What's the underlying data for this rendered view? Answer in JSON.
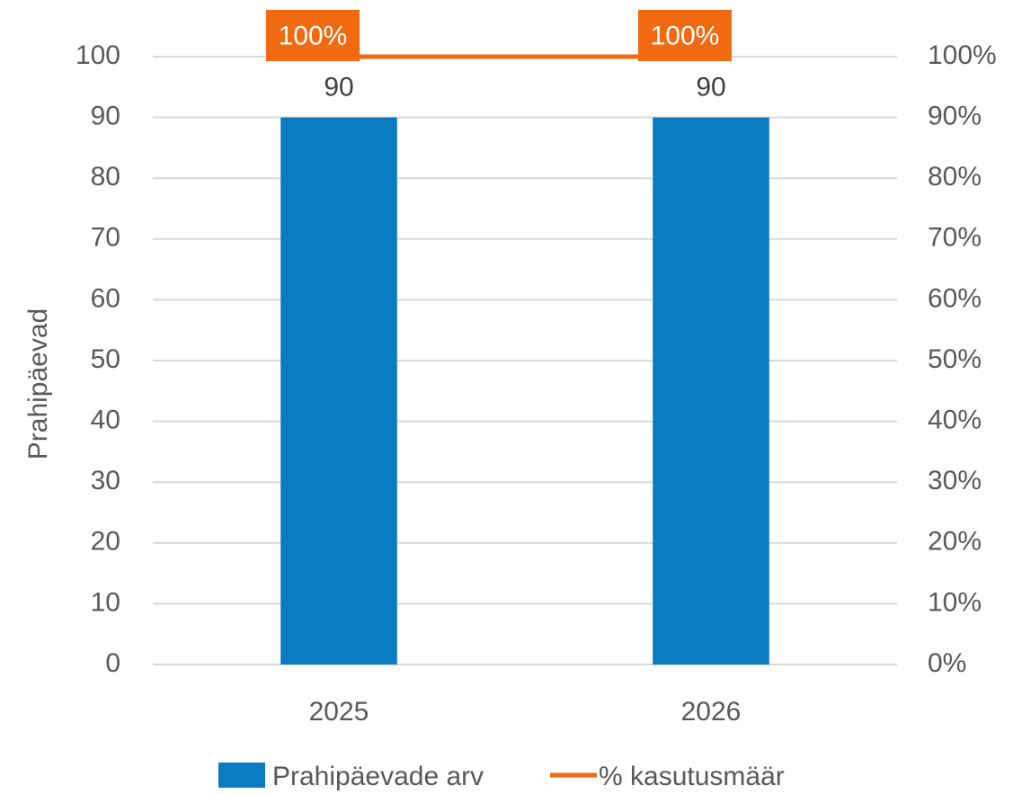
{
  "chart_data": {
    "type": "bar",
    "categories": [
      "2025",
      "2026"
    ],
    "series": [
      {
        "name": "Prahipäevade arv",
        "type": "bar",
        "axis": "left",
        "values": [
          90,
          90
        ],
        "value_labels": [
          "90",
          "90"
        ],
        "color": "#0A7BC0"
      },
      {
        "name": "% kasutusmäär",
        "type": "line",
        "axis": "right",
        "values": [
          100,
          100
        ],
        "value_labels": [
          "100%",
          "100%"
        ],
        "color": "#F26A10"
      }
    ],
    "xlabel": "",
    "ylabel": "Prahipäevad",
    "y_left": {
      "ylim": [
        0,
        100
      ],
      "ticks": [
        "0",
        "10",
        "20",
        "30",
        "40",
        "50",
        "60",
        "70",
        "80",
        "90",
        "100"
      ]
    },
    "y_right": {
      "ylim": [
        0,
        100
      ],
      "ticks": [
        "0%",
        "10%",
        "20%",
        "30%",
        "40%",
        "50%",
        "60%",
        "70%",
        "80%",
        "90%",
        "100%"
      ]
    },
    "grid": true,
    "legend": {
      "position": "bottom",
      "entries": [
        "Prahipäevade arv",
        "% kasutusmäär"
      ]
    },
    "colors": {
      "grid": "#D9D9D9",
      "text": "#595959",
      "bar": "#0A7BC0",
      "line": "#F26A10"
    }
  }
}
